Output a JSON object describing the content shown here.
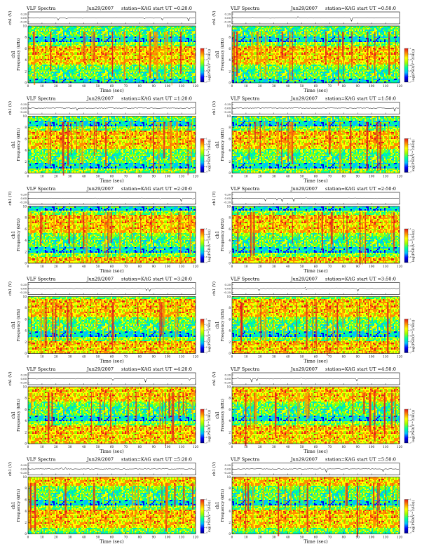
{
  "figure": {
    "axis_labels": {
      "time": "Time (sec)",
      "frequency": "Frequency (kHz)",
      "channel": "ch1",
      "wave": "ch1 (V)",
      "colorbar": "log(PSD(V^2/Hz))"
    },
    "x_ticks": [
      "0",
      "10",
      "20",
      "30",
      "40",
      "50",
      "60",
      "70",
      "80",
      "90",
      "100",
      "110",
      "120"
    ],
    "freq_ticks": [
      "0",
      "2",
      "4",
      "6",
      "8",
      "10"
    ],
    "wave_ticks": [
      "0.20",
      "0.00",
      "-0.20"
    ],
    "colorbar_ticks": [
      "-1",
      "-2",
      "-3",
      "-4",
      "-5",
      "-6",
      "-7"
    ]
  },
  "panels": [
    {
      "title": "VLF Spectra",
      "date": "Jun29/2007",
      "station": "station=KAG",
      "start": "start UT =0:20:0"
    },
    {
      "title": "VLF Spectra",
      "date": "Jun29/2007",
      "station": "station=KAG",
      "start": "start UT =0:50:0"
    },
    {
      "title": "VLF Spectra",
      "date": "Jun29/2007",
      "station": "station=KAG",
      "start": "start UT =1:20:0"
    },
    {
      "title": "VLF Spectra",
      "date": "Jun29/2007",
      "station": "station=KAG",
      "start": "start UT =1:50:0"
    },
    {
      "title": "VLF Spectra",
      "date": "Jun29/2007",
      "station": "station=KAG",
      "start": "start UT =2:20:0"
    },
    {
      "title": "VLF Spectra",
      "date": "Jun29/2007",
      "station": "station=KAG",
      "start": "start UT =2:50:0"
    },
    {
      "title": "VLF Spectra",
      "date": "Jun29/2007",
      "station": "station=KAG",
      "start": "start UT =3:20:0"
    },
    {
      "title": "VLF Spectra",
      "date": "Jun29/2007",
      "station": "station=KAG",
      "start": "start UT =3:50:0"
    },
    {
      "title": "VLF Spectra",
      "date": "Jun29/2007",
      "station": "station=KAG",
      "start": "start UT =4:20:0"
    },
    {
      "title": "VLF Spectra",
      "date": "Jun29/2007",
      "station": "station=KAG",
      "start": "start UT =4:50:0"
    },
    {
      "title": "VLF Spectra",
      "date": "Jun29/2007",
      "station": "station=KAG",
      "start": "start UT =5:20:0"
    },
    {
      "title": "VLF Spectra",
      "date": "Jun29/2007",
      "station": "station=KAG",
      "start": "start UT =5:50:0"
    }
  ],
  "chart_data": {
    "type": "heatmap",
    "panel_count": 12,
    "layout": "6 rows x 2 columns",
    "x": {
      "label": "Time (sec)",
      "range": [
        0,
        120
      ]
    },
    "y": {
      "label": "Frequency (kHz)",
      "range": [
        0,
        10
      ]
    },
    "wave_range": [
      -0.2,
      0.2
    ],
    "color_scale": {
      "label": "log(PSD(V^2/Hz))",
      "range": [
        -7,
        -1
      ],
      "colors": [
        "#00008b",
        "#0000ff",
        "#00bfff",
        "#00ff99",
        "#9bff00",
        "#ffff00",
        "#ff8c00",
        "#e31a1c"
      ]
    },
    "strong_band_khz": [
      5,
      9
    ],
    "grid": true
  }
}
